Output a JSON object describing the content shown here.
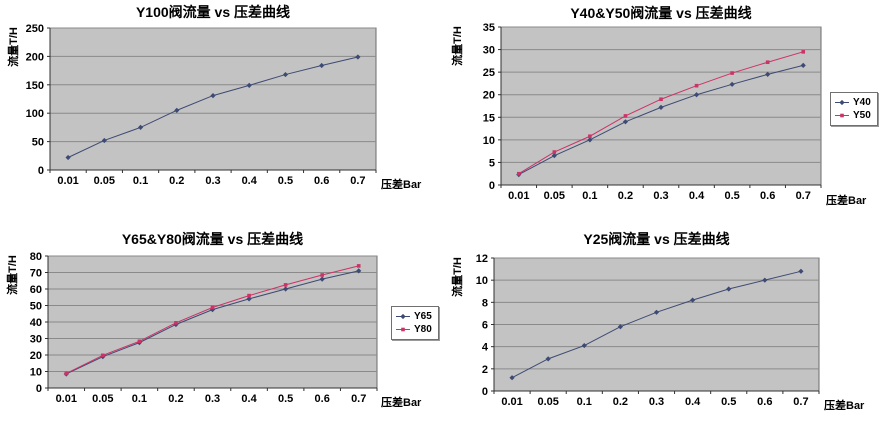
{
  "colors": {
    "plot_background": "#c3c3c3",
    "plot_border": "#6b6b6b",
    "gridline": "#8a8a8a",
    "axis": "#303030",
    "navy_series": "#3d4a73",
    "pink_series": "#cc3366"
  },
  "chart_data": [
    {
      "type": "line",
      "title": "Y100阀流量 vs 压差曲线",
      "xlabel": "压差Bar",
      "ylabel": "流量T/H",
      "categories": [
        "0.01",
        "0.05",
        "0.1",
        "0.2",
        "0.3",
        "0.4",
        "0.5",
        "0.6",
        "0.7"
      ],
      "ylim": [
        0,
        250
      ],
      "ytick_step": 50,
      "grid": true,
      "legend": false,
      "plot_bg": "#c3c3c3",
      "series": [
        {
          "name": "Y100",
          "color": "#3d4a73",
          "marker": "diamond",
          "values": [
            22,
            52,
            75,
            105,
            131,
            149,
            168,
            184,
            199
          ]
        }
      ]
    },
    {
      "type": "line",
      "title": "Y40&Y50阀流量 vs 压差曲线",
      "xlabel": "压差Bar",
      "ylabel": "流量T/H",
      "categories": [
        "0.01",
        "0.05",
        "0.1",
        "0.2",
        "0.3",
        "0.4",
        "0.5",
        "0.6",
        "0.7"
      ],
      "ylim": [
        0,
        35
      ],
      "ytick_step": 5,
      "grid": true,
      "legend": true,
      "legend_position": "right",
      "plot_bg": "#c3c3c3",
      "series": [
        {
          "name": "Y40",
          "color": "#3d4a73",
          "marker": "diamond",
          "values": [
            2.3,
            6.5,
            10,
            14,
            17.2,
            20,
            22.3,
            24.5,
            26.5
          ]
        },
        {
          "name": "Y50",
          "color": "#cc3366",
          "marker": "square",
          "values": [
            2.5,
            7.3,
            10.8,
            15.3,
            19,
            22,
            24.8,
            27.2,
            29.5
          ]
        }
      ]
    },
    {
      "type": "line",
      "title": "Y65&Y80阀流量 vs 压差曲线",
      "xlabel": "压差Bar",
      "ylabel": "流量T/H",
      "categories": [
        "0.01",
        "0.05",
        "0.1",
        "0.2",
        "0.3",
        "0.4",
        "0.5",
        "0.6",
        "0.7"
      ],
      "ylim": [
        0,
        80
      ],
      "ytick_step": 10,
      "grid": true,
      "legend": true,
      "legend_position": "right",
      "plot_bg": "#c3c3c3",
      "series": [
        {
          "name": "Y65",
          "color": "#3d4a73",
          "marker": "diamond",
          "values": [
            8.5,
            19,
            27.5,
            38.5,
            47.5,
            54,
            60,
            66,
            71
          ]
        },
        {
          "name": "Y80",
          "color": "#cc3366",
          "marker": "square",
          "values": [
            8.8,
            19.8,
            28.3,
            39.5,
            48.8,
            56,
            62.5,
            68.5,
            74
          ]
        }
      ]
    },
    {
      "type": "line",
      "title": "Y25阀流量 vs 压差曲线",
      "xlabel": "压差Bar",
      "ylabel": "流量T/H",
      "categories": [
        "0.01",
        "0.05",
        "0.1",
        "0.2",
        "0.3",
        "0.4",
        "0.5",
        "0.6",
        "0.7"
      ],
      "ylim": [
        0,
        12
      ],
      "ytick_step": 2,
      "grid": true,
      "legend": false,
      "plot_bg": "#c3c3c3",
      "series": [
        {
          "name": "Y25",
          "color": "#3d4a73",
          "marker": "diamond",
          "values": [
            1.2,
            2.9,
            4.1,
            5.8,
            7.1,
            8.2,
            9.2,
            10,
            10.8
          ]
        }
      ]
    }
  ]
}
